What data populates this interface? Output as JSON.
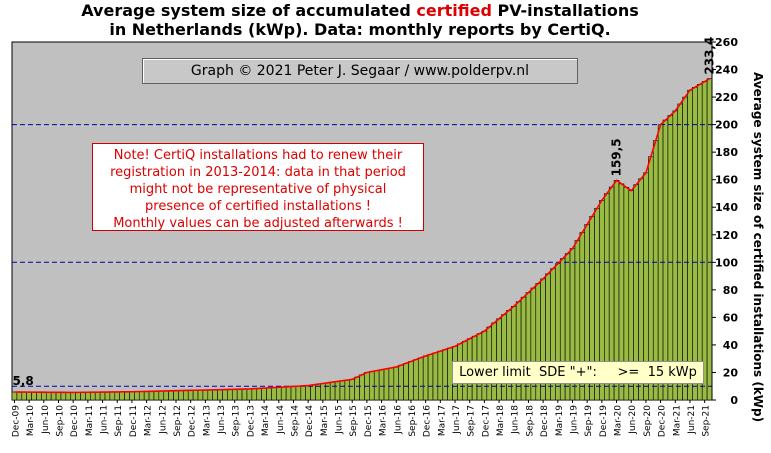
{
  "header": {
    "title_part1": "Average system size of accumulated ",
    "title_highlight": "certified",
    "title_part2": " PV-installations",
    "subtitle": "in Netherlands (kWp). Data: monthly reports by CertiQ."
  },
  "credit": "Graph © 2021 Peter J. Segaar / www.polderpv.nl",
  "note": {
    "lines": [
      "Note! CertiQ installations had to renew their",
      "registration in 2013-2014:  data in that period",
      "might  not be representative of physical",
      "presence of certified installations  !",
      "Monthly values can be adjusted afterwards !"
    ]
  },
  "sde_label": "Lower limit  SDE \"+\":     >=  15 kWp",
  "colors": {
    "plot_background": "#c0c0c0",
    "bar_fill": "#99bb44",
    "bar_stroke": "#000000",
    "trend_line": "#ff0000",
    "reference_line": "#0000aa",
    "highlight_text": "#dd0000"
  },
  "chart_data": {
    "type": "bar",
    "title": "Average system size of accumulated certified PV-installations in Netherlands (kWp). Data: monthly reports by CertiQ.",
    "ylabel": "Average system size of certified installations  (kWp)",
    "xlabel": "",
    "ylim": [
      0,
      260
    ],
    "y_ticks": [
      0,
      20,
      40,
      60,
      80,
      100,
      120,
      140,
      160,
      180,
      200,
      220,
      240,
      260
    ],
    "y_axis_side": "right",
    "grid": false,
    "reference_lines": [
      10,
      100,
      200
    ],
    "trend_line": "red line following bar values",
    "start": "Dec-09",
    "end": "Oct-21",
    "x_tick_labels": [
      "Dec-09",
      "Mar-10",
      "Jun-10",
      "Sep-10",
      "Dec-10",
      "Mar-11",
      "Jun-11",
      "Sep-11",
      "Dec-11",
      "Mar-12",
      "Jun-12",
      "Sep-12",
      "Dec-12",
      "Mar-13",
      "Jun-13",
      "Sep-13",
      "Dec-13",
      "Mar-14",
      "Jun-14",
      "Sep-14",
      "Dec-14",
      "Mar-15",
      "Jun-15",
      "Sep-15",
      "Dec-15",
      "Mar-16",
      "Jun-16",
      "Sep-16",
      "Dec-16",
      "Mar-17",
      "Jun-17",
      "Sep-17",
      "Dec-17",
      "Mar-18",
      "Jun-18",
      "Sep-18",
      "Dec-18",
      "Mar-19",
      "Jun-19",
      "Sep-19",
      "Dec-19",
      "Mar-20",
      "Jun-20",
      "Sep-20",
      "Dec-20",
      "Mar-21",
      "Jun-21",
      "Sep-21"
    ],
    "anchor_points": [
      [
        "Dec-09",
        5.8
      ],
      [
        "Dec-10",
        5.5
      ],
      [
        "Dec-11",
        6.0
      ],
      [
        "Dec-12",
        7.0
      ],
      [
        "Dec-13",
        8.0
      ],
      [
        "Dec-14",
        10.5
      ],
      [
        "Sep-15",
        15.0
      ],
      [
        "Dec-15",
        20.0
      ],
      [
        "Jun-16",
        24.0
      ],
      [
        "Dec-16",
        32.0
      ],
      [
        "Jun-17",
        39.0
      ],
      [
        "Dec-17",
        50.0
      ],
      [
        "Jun-18",
        68.0
      ],
      [
        "Dec-18",
        88.0
      ],
      [
        "Jun-19",
        110.0
      ],
      [
        "Dec-19",
        145.0
      ],
      [
        "Mar-20",
        159.5
      ],
      [
        "Jun-20",
        152.0
      ],
      [
        "Sep-20",
        165.0
      ],
      [
        "Dec-20",
        200.0
      ],
      [
        "Mar-21",
        210.0
      ],
      [
        "Jun-21",
        225.0
      ],
      [
        "Oct-21",
        233.4
      ]
    ],
    "annotations": [
      {
        "label": "5,8",
        "at": "Dec-09",
        "value": 5.8
      },
      {
        "label": "159,5",
        "at": "Mar-20",
        "value": 159.5
      },
      {
        "label": "233,4",
        "at": "Oct-21",
        "value": 233.4
      }
    ]
  }
}
